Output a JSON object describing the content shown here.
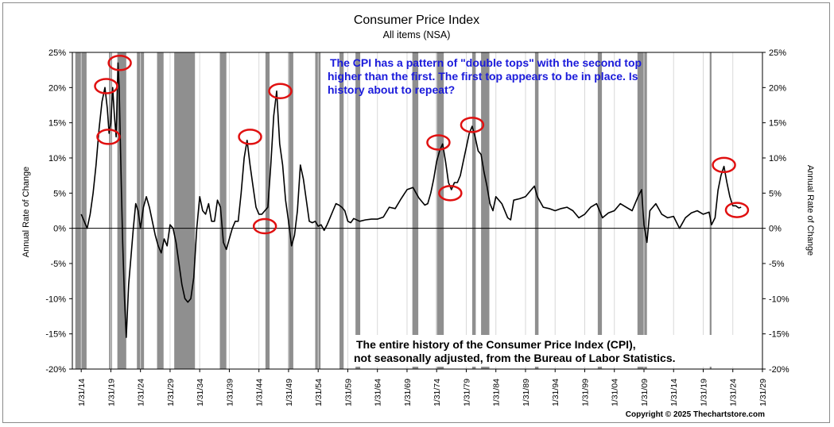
{
  "chart_data": {
    "type": "line",
    "title": "Consumer Price Index",
    "subtitle": "All items (NSA)",
    "ylabel_left": "Annual Rate of Change",
    "ylabel_right": "Annual Rate of Change",
    "ylim": [
      -20,
      25
    ],
    "xlim": [
      1912.5,
      2029.0
    ],
    "y_ticks": [
      25,
      20,
      15,
      10,
      5,
      0,
      -5,
      -10,
      -15,
      -20
    ],
    "y_tick_labels": [
      "25%",
      "20%",
      "15%",
      "10%",
      "5%",
      "0%",
      "-5%",
      "-10%",
      "-15%",
      "-20%"
    ],
    "x_ticks": [
      1914,
      1919,
      1924,
      1929,
      1934,
      1939,
      1944,
      1949,
      1954,
      1959,
      1964,
      1969,
      1974,
      1979,
      1984,
      1989,
      1994,
      1999,
      2004,
      2009,
      2014,
      2019,
      2024,
      2029
    ],
    "x_tick_labels": [
      "1/31/14",
      "1/31/19",
      "1/31/24",
      "1/31/29",
      "1/31/34",
      "1/31/39",
      "1/31/44",
      "1/31/49",
      "1/31/54",
      "1/31/59",
      "1/31/64",
      "1/31/69",
      "1/31/74",
      "1/31/79",
      "1/31/84",
      "1/31/89",
      "1/31/94",
      "1/31/99",
      "1/31/04",
      "1/31/09",
      "1/31/14",
      "1/31/19",
      "1/31/24",
      "1/31/29"
    ],
    "recessions": [
      [
        1913.0,
        1914.9
      ],
      [
        1918.7,
        1919.2
      ],
      [
        1920.1,
        1921.6
      ],
      [
        1923.4,
        1924.6
      ],
      [
        1926.8,
        1927.9
      ],
      [
        1929.7,
        1933.2
      ],
      [
        1937.4,
        1938.5
      ],
      [
        1945.1,
        1945.8
      ],
      [
        1948.9,
        1949.8
      ],
      [
        1953.5,
        1954.4
      ],
      [
        1957.6,
        1958.3
      ],
      [
        1960.3,
        1961.1
      ],
      [
        1969.9,
        1970.9
      ],
      [
        1973.9,
        1975.2
      ],
      [
        1980.0,
        1980.6
      ],
      [
        1981.5,
        1982.9
      ],
      [
        1990.6,
        1991.2
      ],
      [
        2001.2,
        2001.9
      ],
      [
        2007.9,
        2009.5
      ],
      [
        2020.1,
        2020.4
      ]
    ],
    "series": [
      {
        "name": "CPI All items (NSA) annual rate of change",
        "x": [
          1914.0,
          1914.5,
          1915.0,
          1915.5,
          1916.0,
          1916.5,
          1917.0,
          1917.5,
          1918.0,
          1918.4,
          1918.7,
          1919.0,
          1919.3,
          1919.6,
          1919.9,
          1920.2,
          1920.4,
          1920.8,
          1921.0,
          1921.3,
          1921.6,
          1922.0,
          1922.4,
          1922.8,
          1923.2,
          1923.6,
          1924.0,
          1924.5,
          1925.0,
          1925.5,
          1926.0,
          1926.5,
          1927.0,
          1927.5,
          1928.0,
          1928.5,
          1929.0,
          1929.5,
          1930.0,
          1930.5,
          1931.0,
          1931.5,
          1932.0,
          1932.5,
          1933.0,
          1933.5,
          1934.0,
          1934.5,
          1935.0,
          1935.5,
          1936.0,
          1936.5,
          1937.0,
          1937.5,
          1938.0,
          1938.5,
          1939.0,
          1939.5,
          1940.0,
          1940.5,
          1941.0,
          1941.5,
          1942.0,
          1942.5,
          1943.0,
          1943.5,
          1944.0,
          1944.5,
          1945.0,
          1945.5,
          1946.0,
          1946.5,
          1947.0,
          1947.5,
          1948.0,
          1948.5,
          1949.0,
          1949.5,
          1950.0,
          1950.5,
          1951.0,
          1951.5,
          1952.0,
          1952.5,
          1953.0,
          1953.5,
          1954.0,
          1954.5,
          1955.0,
          1955.5,
          1956.0,
          1956.5,
          1957.0,
          1957.5,
          1958.0,
          1958.5,
          1959.0,
          1959.5,
          1960.0,
          1961.0,
          1962.0,
          1963.0,
          1964.0,
          1965.0,
          1966.0,
          1967.0,
          1968.0,
          1969.0,
          1970.0,
          1971.0,
          1972.0,
          1972.5,
          1973.0,
          1973.5,
          1974.0,
          1974.5,
          1975.0,
          1975.5,
          1976.0,
          1976.5,
          1977.0,
          1977.5,
          1978.0,
          1978.5,
          1979.0,
          1979.5,
          1980.0,
          1980.5,
          1981.0,
          1981.5,
          1982.0,
          1982.5,
          1983.0,
          1983.5,
          1984.0,
          1985.0,
          1986.0,
          1986.5,
          1987.0,
          1988.0,
          1989.0,
          1990.0,
          1990.5,
          1991.0,
          1992.0,
          1993.0,
          1994.0,
          1995.0,
          1996.0,
          1997.0,
          1998.0,
          1999.0,
          2000.0,
          2001.0,
          2002.0,
          2003.0,
          2004.0,
          2005.0,
          2006.0,
          2007.0,
          2008.0,
          2008.6,
          2009.0,
          2009.5,
          2010.0,
          2011.0,
          2012.0,
          2013.0,
          2014.0,
          2015.0,
          2016.0,
          2017.0,
          2018.0,
          2019.0,
          2020.0,
          2020.4,
          2021.0,
          2021.5,
          2022.0,
          2022.5,
          2023.0,
          2023.5,
          2024.0,
          2024.5,
          2025.0,
          2025.4
        ],
        "values": [
          2.0,
          1.0,
          0.0,
          2.0,
          5.0,
          9.0,
          14.0,
          18.0,
          20.0,
          17.0,
          13.5,
          15.0,
          20.0,
          16.0,
          13.0,
          23.5,
          20.0,
          5.0,
          -2.0,
          -10.0,
          -15.5,
          -8.0,
          -4.0,
          0.0,
          3.5,
          2.5,
          0.0,
          3.0,
          4.5,
          3.0,
          1.0,
          -1.0,
          -2.5,
          -3.5,
          -1.5,
          -2.5,
          0.5,
          0.0,
          -2.0,
          -5.0,
          -8.0,
          -10.0,
          -10.5,
          -10.0,
          -7.0,
          0.0,
          4.5,
          2.5,
          2.0,
          3.5,
          1.0,
          1.0,
          4.0,
          3.0,
          -2.0,
          -3.0,
          -1.5,
          0.0,
          1.0,
          1.0,
          5.0,
          10.0,
          12.5,
          9.0,
          6.0,
          3.0,
          2.0,
          2.0,
          2.5,
          3.0,
          9.0,
          16.0,
          19.5,
          12.0,
          9.0,
          4.0,
          1.0,
          -2.5,
          -1.0,
          2.5,
          9.0,
          7.0,
          4.0,
          1.0,
          0.8,
          1.0,
          0.3,
          0.5,
          -0.3,
          0.5,
          1.5,
          2.5,
          3.5,
          3.3,
          3.0,
          2.5,
          1.0,
          0.8,
          1.4,
          1.0,
          1.2,
          1.3,
          1.3,
          1.6,
          3.0,
          2.8,
          4.2,
          5.5,
          5.8,
          4.3,
          3.3,
          3.5,
          5.0,
          7.0,
          9.5,
          11.0,
          12.0,
          9.5,
          6.5,
          5.5,
          6.5,
          6.5,
          7.5,
          9.5,
          11.5,
          13.5,
          14.5,
          13.0,
          11.0,
          10.5,
          8.0,
          6.0,
          3.5,
          2.5,
          4.5,
          3.5,
          1.5,
          1.2,
          4.0,
          4.2,
          4.5,
          5.5,
          6.0,
          4.5,
          3.0,
          2.8,
          2.5,
          2.8,
          3.0,
          2.5,
          1.5,
          2.0,
          3.0,
          3.5,
          1.5,
          2.2,
          2.5,
          3.5,
          3.0,
          2.5,
          4.5,
          5.5,
          0.5,
          -2.0,
          2.5,
          3.5,
          2.0,
          1.5,
          1.7,
          0.0,
          1.5,
          2.2,
          2.5,
          2.0,
          2.3,
          0.5,
          1.5,
          5.4,
          7.5,
          8.8,
          6.5,
          4.5,
          3.2,
          3.2,
          2.9,
          3.0
        ],
        "color": "#000000"
      }
    ],
    "highlight_circles": [
      {
        "x": 1918.2,
        "y": 20.2
      },
      {
        "x": 1918.6,
        "y": 13.0
      },
      {
        "x": 1920.5,
        "y": 23.5
      },
      {
        "x": 1942.5,
        "y": 13.0
      },
      {
        "x": 1945.0,
        "y": 0.3
      },
      {
        "x": 1947.6,
        "y": 19.5
      },
      {
        "x": 1974.3,
        "y": 12.2
      },
      {
        "x": 1976.3,
        "y": 5.0
      },
      {
        "x": 1980.0,
        "y": 14.7
      },
      {
        "x": 2022.5,
        "y": 9.0
      },
      {
        "x": 2024.7,
        "y": 2.6
      }
    ],
    "annotation_blue": [
      "The CPI has a pattern of \"double tops\" with the second top",
      "higher than the first.  The first top appears to be in place.  Is",
      "history about to repeat?"
    ],
    "annotation_black": [
      "The entire history of the Consumer Price Index (CPI),",
      "not seasonally adjusted, from the Bureau of Labor Statistics."
    ],
    "copyright": "Copyright © 2025 Thechartstore.com",
    "colors": {
      "line": "#000000",
      "recession": "#8f8f8f",
      "circle": "#e01010",
      "note": "#1a1adb"
    }
  }
}
